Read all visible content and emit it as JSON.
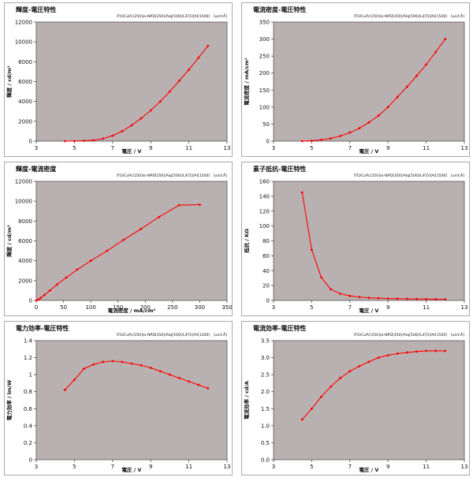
{
  "chart_data": [
    {
      "type": "line",
      "title": "輝度-電圧特性",
      "subtitle": "ITO/CuPc[250]/α-NPD[350]/Alq[500]/LiF[5]/Al[1500]　[unit:Å]",
      "xlabel": "電圧 / V",
      "ylabel": "輝度 / cd/m²",
      "xlim": [
        3,
        13
      ],
      "ylim": [
        0,
        12000
      ],
      "xticks": [
        3,
        5,
        7,
        9,
        11,
        13
      ],
      "yticks": [
        0,
        2000,
        4000,
        6000,
        8000,
        10000,
        12000
      ],
      "grid": false,
      "colors": {
        "line": "#ff0000",
        "plot_bg": "#b9b1b1"
      },
      "x": [
        4.5,
        5.0,
        5.5,
        6.0,
        6.5,
        7.0,
        7.5,
        8.0,
        8.5,
        9.0,
        9.5,
        10.0,
        10.5,
        11.0,
        11.5,
        12.0
      ],
      "values": [
        0,
        10,
        40,
        100,
        250,
        550,
        1000,
        1600,
        2300,
        3100,
        4000,
        5000,
        6100,
        7200,
        8400,
        9600
      ]
    },
    {
      "type": "line",
      "title": "電流密度-電圧特性",
      "subtitle": "ITO/CuPc[250]/α-NPD[350]/Alq[500]/LiF[5]/Al[1500]　[unit:Å]",
      "xlabel": "電圧 / V",
      "ylabel": "電流密度 / mA/cm²",
      "xlim": [
        3,
        13
      ],
      "ylim": [
        0,
        350
      ],
      "xticks": [
        3,
        5,
        7,
        9,
        11,
        13
      ],
      "yticks": [
        0,
        50,
        100,
        150,
        200,
        250,
        300,
        350
      ],
      "grid": false,
      "colors": {
        "line": "#ff0000",
        "plot_bg": "#b9b1b1"
      },
      "x": [
        4.5,
        5.0,
        5.5,
        6.0,
        6.5,
        7.0,
        7.5,
        8.0,
        8.5,
        9.0,
        9.5,
        10.0,
        10.5,
        11.0,
        11.5,
        12.0
      ],
      "values": [
        0,
        1,
        4,
        8,
        15,
        25,
        38,
        55,
        75,
        100,
        130,
        160,
        192,
        225,
        262,
        300
      ]
    },
    {
      "type": "line",
      "title": "輝度-電流密度",
      "subtitle": "ITO/CuPc[250]/α-NPD[350]/Alq[500]/LiF[5]/Al[1500]　[unit:Å]",
      "xlabel": "電流密度 / mA/cm²",
      "ylabel": "輝度 / cd/m²",
      "xlim": [
        0,
        350
      ],
      "ylim": [
        0,
        12000
      ],
      "xticks": [
        0,
        50,
        100,
        150,
        200,
        250,
        300,
        350
      ],
      "yticks": [
        0,
        2000,
        4000,
        6000,
        8000,
        10000,
        12000
      ],
      "grid": false,
      "colors": {
        "line": "#ff0000",
        "plot_bg": "#b9b1b1"
      },
      "x": [
        0,
        4,
        8,
        15,
        25,
        38,
        55,
        75,
        100,
        130,
        160,
        192,
        225,
        262,
        300
      ],
      "values": [
        0,
        100,
        250,
        550,
        1000,
        1600,
        2300,
        3100,
        4000,
        5000,
        6100,
        7200,
        8400,
        9600,
        9650
      ]
    },
    {
      "type": "line",
      "title": "素子抵抗-電圧特性",
      "subtitle": "ITO/CuPc[250]/α-NPD[350]/Alq[500]/LiF[5]/Al[1500]　[unit:Å]",
      "xlabel": "電圧 / V",
      "ylabel": "抵抗 / KΩ",
      "xlim": [
        3,
        13
      ],
      "ylim": [
        0,
        160
      ],
      "xticks": [
        3,
        5,
        7,
        9,
        11,
        13
      ],
      "yticks": [
        0,
        20,
        40,
        60,
        80,
        100,
        120,
        140,
        160
      ],
      "grid": false,
      "colors": {
        "line": "#ff0000",
        "plot_bg": "#b9b1b1"
      },
      "x": [
        4.5,
        5.0,
        5.5,
        6.0,
        6.5,
        7.0,
        7.5,
        8.0,
        8.5,
        9.0,
        9.5,
        10.0,
        10.5,
        11.0,
        11.5,
        12.0
      ],
      "values": [
        145,
        68,
        31,
        15,
        9,
        6,
        4.5,
        3.5,
        3,
        2.6,
        2.3,
        2.1,
        1.9,
        1.8,
        1.7,
        1.6
      ]
    },
    {
      "type": "line",
      "title": "電力効率-電圧特性",
      "subtitle": "ITO/CuPc[250]/α-NPD[350]/Alq[500]/LiF[5]/Al[1500]　[unit:Å]",
      "xlabel": "電圧 / V",
      "ylabel": "電力効率 / lm/W",
      "xlim": [
        3,
        13
      ],
      "ylim": [
        0,
        1.4
      ],
      "xticks": [
        3,
        5,
        7,
        9,
        11,
        13
      ],
      "yticks": [
        0,
        0.2,
        0.4,
        0.6,
        0.8,
        1.0,
        1.2,
        1.4
      ],
      "yticklabels": [
        "0",
        "0.2",
        "0.4",
        "0.6",
        "0.8",
        "1",
        "1.2",
        "1.4"
      ],
      "grid": false,
      "colors": {
        "line": "#ff0000",
        "plot_bg": "#b9b1b1"
      },
      "x": [
        4.5,
        5.0,
        5.5,
        6.0,
        6.5,
        7.0,
        7.5,
        8.0,
        8.5,
        9.0,
        9.5,
        10.0,
        10.5,
        11.0,
        11.5,
        12.0
      ],
      "values": [
        0.82,
        0.94,
        1.07,
        1.12,
        1.15,
        1.16,
        1.15,
        1.13,
        1.11,
        1.08,
        1.04,
        1.0,
        0.96,
        0.92,
        0.88,
        0.84
      ]
    },
    {
      "type": "line",
      "title": "電流効率-電圧特性",
      "subtitle": "ITO/CuPc[250]/α-NPD[350]/Alq[500]/LiF[5]/Al[1500]　[unit:Å]",
      "xlabel": "電圧 / V",
      "ylabel": "電流効率 / cd/A",
      "xlim": [
        3,
        13
      ],
      "ylim": [
        0,
        3.5
      ],
      "xticks": [
        3,
        5,
        7,
        9,
        11,
        13
      ],
      "yticks": [
        0,
        0.5,
        1.0,
        1.5,
        2.0,
        2.5,
        3.0,
        3.5
      ],
      "yticklabels": [
        "0.0",
        "0.5",
        "1.0",
        "1.5",
        "2.0",
        "2.5",
        "3.0",
        "3.5"
      ],
      "grid": false,
      "colors": {
        "line": "#ff0000",
        "plot_bg": "#b9b1b1"
      },
      "x": [
        4.5,
        5.0,
        5.5,
        6.0,
        6.5,
        7.0,
        7.5,
        8.0,
        8.5,
        9.0,
        9.5,
        10.0,
        10.5,
        11.0,
        11.5,
        12.0
      ],
      "values": [
        1.18,
        1.5,
        1.85,
        2.15,
        2.4,
        2.6,
        2.75,
        2.88,
        3.0,
        3.07,
        3.12,
        3.15,
        3.18,
        3.2,
        3.2,
        3.2
      ]
    }
  ]
}
